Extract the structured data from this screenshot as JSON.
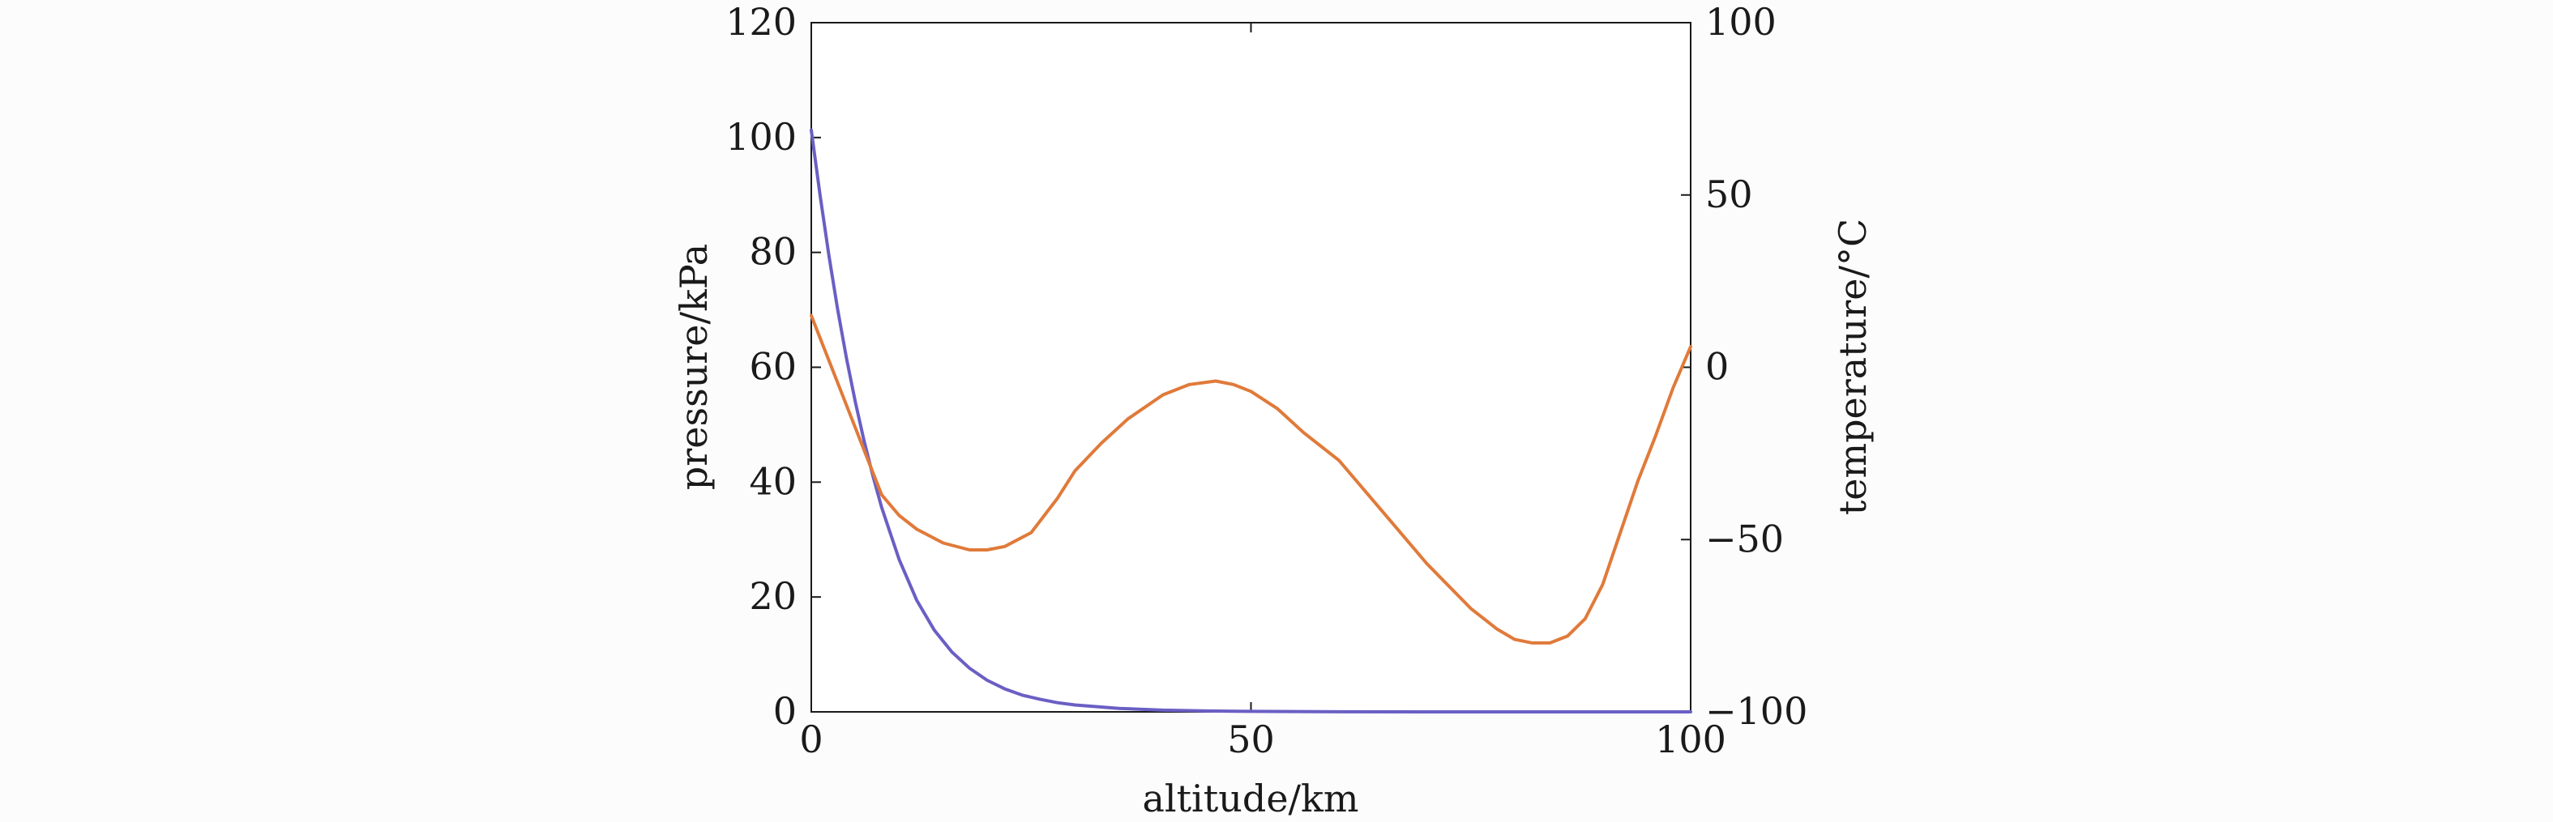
{
  "chart_data": {
    "type": "line",
    "title": "",
    "xlabel": "altitude/km",
    "ylabel_left": "pressure/kPa",
    "ylabel_right": "temperature/°C",
    "xlim": [
      0,
      100
    ],
    "ylim_left": [
      0,
      120
    ],
    "ylim_right": [
      -100,
      100
    ],
    "x_ticks": [
      0,
      50,
      100
    ],
    "x_tick_labels": [
      "0",
      "50",
      "100"
    ],
    "y_left_ticks": [
      0,
      20,
      40,
      60,
      80,
      100,
      120
    ],
    "y_left_tick_labels": [
      "0",
      "20",
      "40",
      "60",
      "80",
      "100",
      "120"
    ],
    "y_right_ticks": [
      -100,
      -50,
      0,
      50,
      100
    ],
    "y_right_tick_labels": [
      "−100",
      "−50",
      "0",
      "50",
      "100"
    ],
    "grid": false,
    "legend": "none",
    "series": [
      {
        "axis": "left",
        "color": "#6a5fc4",
        "x": [
          0,
          1,
          2,
          3,
          4,
          5,
          6,
          7,
          8,
          10,
          12,
          14,
          16,
          18,
          20,
          22,
          24,
          26,
          28,
          30,
          35,
          40,
          45,
          50,
          55,
          60,
          70,
          80,
          90,
          100
        ],
        "y": [
          101.3,
          89.9,
          79.5,
          70.1,
          61.6,
          54.0,
          47.2,
          41.1,
          35.6,
          26.5,
          19.4,
          14.2,
          10.4,
          7.6,
          5.5,
          4.0,
          2.9,
          2.2,
          1.6,
          1.2,
          0.6,
          0.3,
          0.15,
          0.08,
          0.05,
          0.02,
          0.005,
          0.001,
          0.0,
          0.0
        ]
      },
      {
        "axis": "right",
        "color": "#e07a3a",
        "x": [
          0,
          2,
          4,
          6,
          8,
          10,
          12,
          15,
          18,
          20,
          22,
          25,
          28,
          30,
          33,
          36,
          40,
          43,
          46,
          48,
          50,
          53,
          56,
          60,
          65,
          70,
          75,
          78,
          80,
          82,
          84,
          86,
          88,
          90,
          92,
          94,
          96,
          98,
          100
        ],
        "y": [
          15,
          2,
          -11,
          -24,
          -37,
          -43,
          -47,
          -51,
          -53,
          -53,
          -52,
          -48,
          -38,
          -30,
          -22,
          -15,
          -8,
          -5,
          -4,
          -5,
          -7,
          -12,
          -19,
          -27,
          -42,
          -57,
          -70,
          -76,
          -79,
          -80,
          -80,
          -78,
          -73,
          -63,
          -48,
          -33,
          -20,
          -6,
          6
        ]
      }
    ]
  }
}
